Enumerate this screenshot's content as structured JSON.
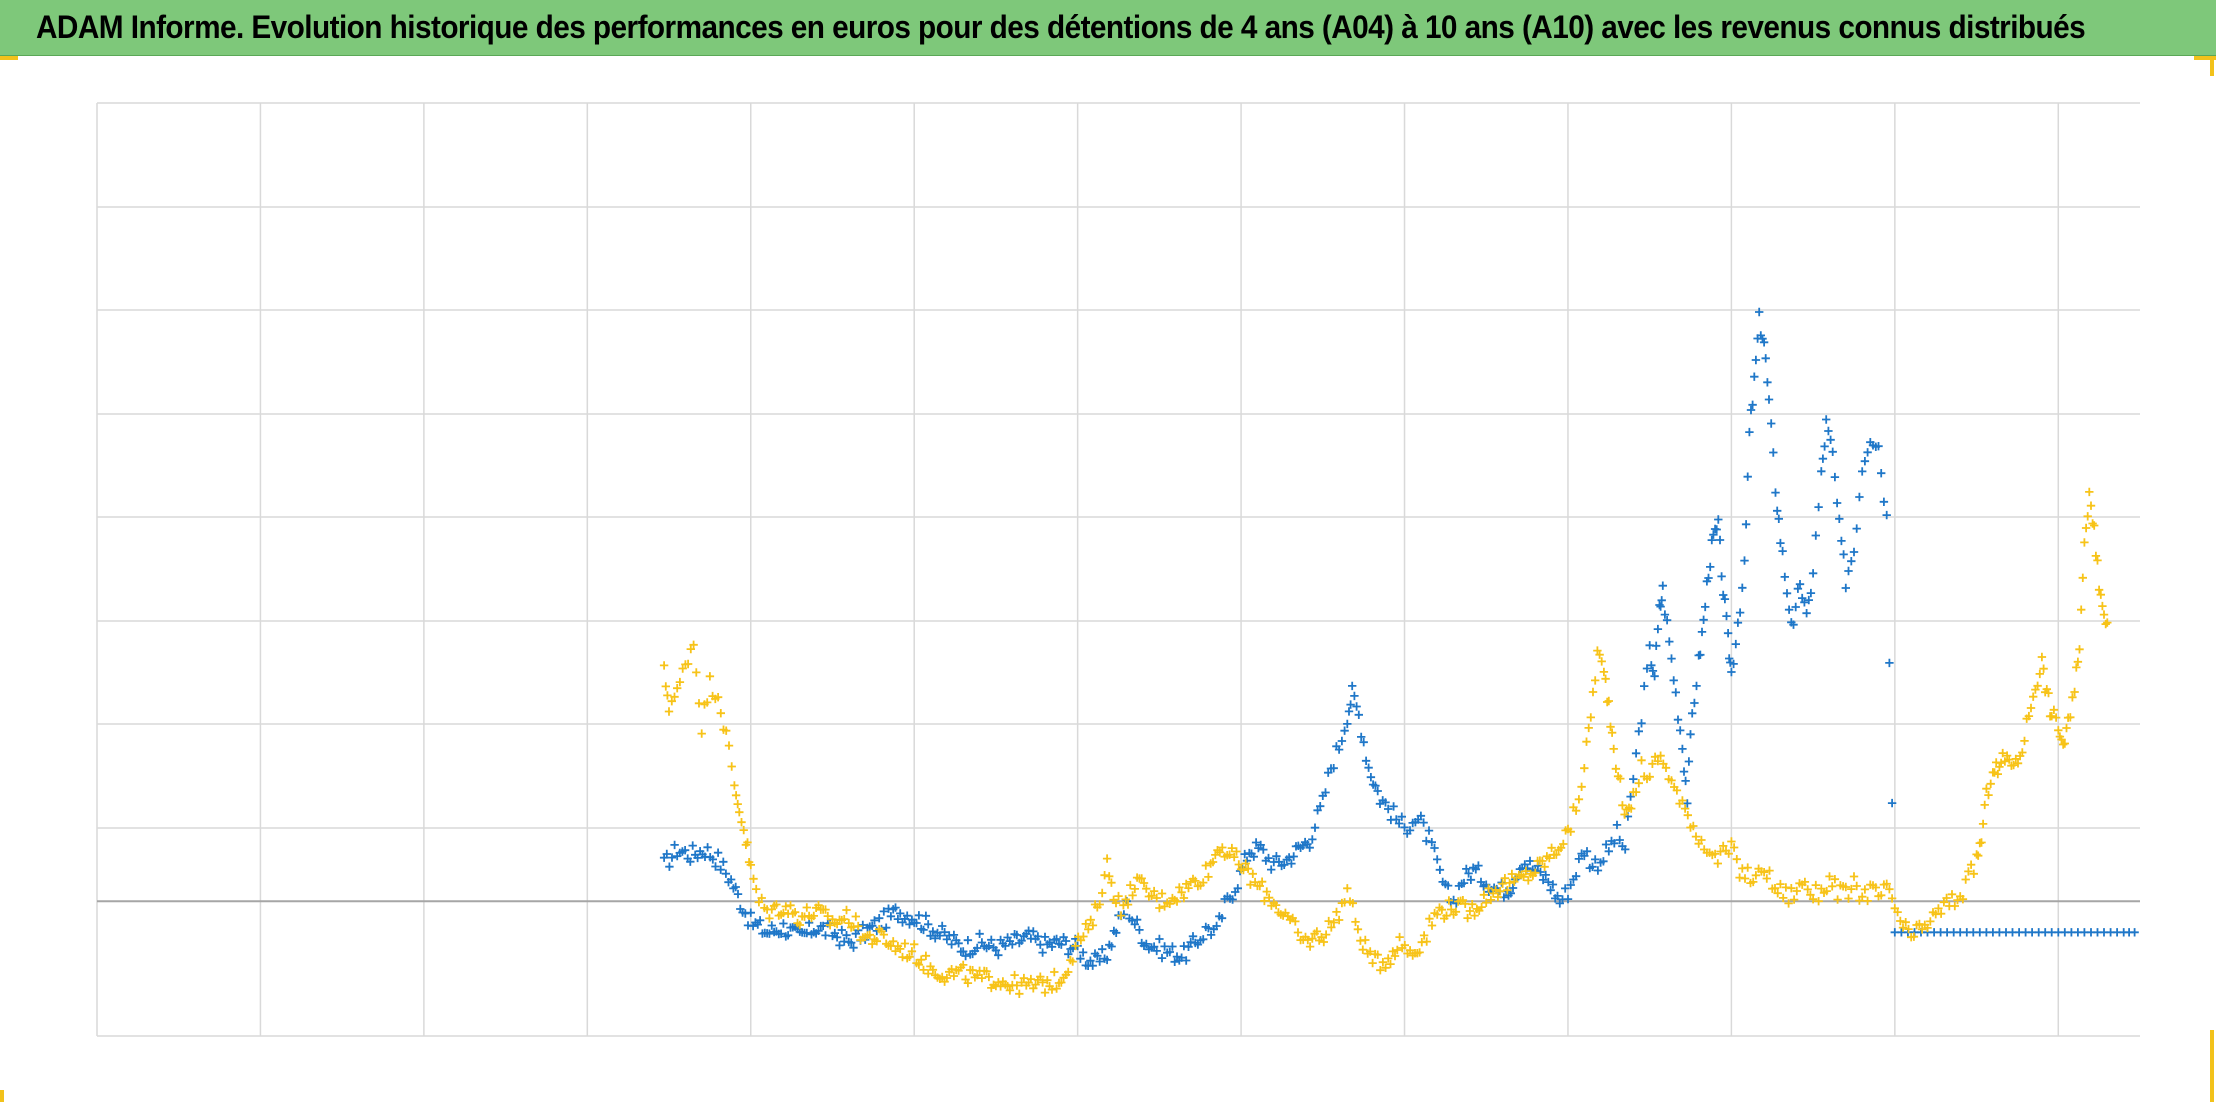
{
  "title": "ADAM Informe. Evolution historique des performances en euros pour des détentions de 4 ans (A04) à 10 ans (A10) avec les revenus connus distribués",
  "colors": {
    "title_background": "#7ec87a",
    "series_a04": "#1f77c8",
    "series_a10": "#f7c318",
    "grid": "#d9d9d9",
    "zero_line": "#a6a6a6",
    "accent_corner": "#f2c21b"
  },
  "chart_data": {
    "type": "scatter",
    "marker": "plus",
    "grid": true,
    "legend": "none",
    "x_axis": {
      "range": [
        0,
        12.5
      ],
      "gridlines": 13,
      "tick_labels": []
    },
    "y_axis": {
      "range": [
        -1.3,
        7.7
      ],
      "gridlines": 10,
      "zero_line": 0,
      "tick_labels": []
    },
    "series": [
      {
        "color": "#1f77c8",
        "points": [
          [
            3.47,
            0.35
          ],
          [
            3.55,
            0.5
          ],
          [
            3.63,
            0.45
          ],
          [
            3.72,
            0.5
          ],
          [
            3.8,
            0.4
          ],
          [
            3.88,
            0.2
          ],
          [
            3.95,
            -0.05
          ],
          [
            4.0,
            -0.2
          ],
          [
            4.1,
            -0.3
          ],
          [
            4.2,
            -0.25
          ],
          [
            4.3,
            -0.35
          ],
          [
            4.4,
            -0.25
          ],
          [
            4.5,
            -0.3
          ],
          [
            4.6,
            -0.4
          ],
          [
            4.7,
            -0.3
          ],
          [
            4.8,
            -0.2
          ],
          [
            4.9,
            -0.1
          ],
          [
            5.0,
            -0.15
          ],
          [
            5.1,
            -0.25
          ],
          [
            5.2,
            -0.35
          ],
          [
            5.3,
            -0.45
          ],
          [
            5.4,
            -0.4
          ],
          [
            5.5,
            -0.45
          ],
          [
            5.6,
            -0.4
          ],
          [
            5.7,
            -0.35
          ],
          [
            5.8,
            -0.42
          ],
          [
            5.9,
            -0.4
          ],
          [
            6.0,
            -0.45
          ],
          [
            6.05,
            -0.55
          ],
          [
            6.12,
            -0.6
          ],
          [
            6.18,
            -0.5
          ],
          [
            6.25,
            -0.2
          ],
          [
            6.3,
            -0.05
          ],
          [
            6.35,
            -0.2
          ],
          [
            6.42,
            -0.4
          ],
          [
            6.5,
            -0.45
          ],
          [
            6.58,
            -0.5
          ],
          [
            6.65,
            -0.52
          ],
          [
            6.72,
            -0.4
          ],
          [
            6.8,
            -0.25
          ],
          [
            6.85,
            -0.3
          ],
          [
            6.9,
            -0.05
          ],
          [
            6.98,
            0.2
          ],
          [
            7.05,
            0.5
          ],
          [
            7.12,
            0.5
          ],
          [
            7.2,
            0.35
          ],
          [
            7.28,
            0.4
          ],
          [
            7.35,
            0.5
          ],
          [
            7.42,
            0.6
          ],
          [
            7.5,
            0.95
          ],
          [
            7.55,
            1.3
          ],
          [
            7.6,
            1.5
          ],
          [
            7.65,
            1.8
          ],
          [
            7.68,
            2.0
          ],
          [
            7.72,
            1.8
          ],
          [
            7.78,
            1.3
          ],
          [
            7.85,
            1.0
          ],
          [
            7.9,
            0.9
          ],
          [
            7.95,
            0.8
          ],
          [
            8.0,
            0.7
          ],
          [
            8.05,
            0.8
          ],
          [
            8.1,
            0.75
          ],
          [
            8.15,
            0.6
          ],
          [
            8.2,
            0.35
          ],
          [
            8.25,
            0.1
          ],
          [
            8.3,
            0.0
          ],
          [
            8.35,
            0.2
          ],
          [
            8.42,
            0.3
          ],
          [
            8.5,
            0.2
          ],
          [
            8.58,
            0.1
          ],
          [
            8.65,
            0.15
          ],
          [
            8.72,
            0.4
          ],
          [
            8.8,
            0.3
          ],
          [
            8.88,
            0.2
          ],
          [
            8.95,
            0.0
          ],
          [
            9.0,
            0.1
          ],
          [
            9.05,
            0.3
          ],
          [
            9.1,
            0.5
          ],
          [
            9.15,
            0.35
          ],
          [
            9.2,
            0.4
          ],
          [
            9.25,
            0.5
          ],
          [
            9.3,
            0.65
          ],
          [
            9.35,
            0.5
          ],
          [
            9.4,
            1.2
          ],
          [
            9.45,
            1.8
          ],
          [
            9.5,
            2.4
          ],
          [
            9.53,
            2.2
          ],
          [
            9.56,
            2.8
          ],
          [
            9.58,
            3.0
          ],
          [
            9.62,
            2.5
          ],
          [
            9.66,
            2.0
          ],
          [
            9.7,
            1.5
          ],
          [
            9.73,
            1.0
          ],
          [
            9.76,
            1.8
          ],
          [
            9.8,
            2.3
          ],
          [
            9.83,
            2.7
          ],
          [
            9.86,
            3.2
          ],
          [
            9.89,
            3.5
          ],
          [
            9.92,
            3.6
          ],
          [
            9.95,
            3.0
          ],
          [
            9.98,
            2.5
          ],
          [
            10.0,
            2.2
          ],
          [
            10.04,
            2.7
          ],
          [
            10.08,
            3.2
          ],
          [
            10.11,
            4.5
          ],
          [
            10.14,
            5.0
          ],
          [
            10.17,
            5.6
          ],
          [
            10.2,
            5.4
          ],
          [
            10.23,
            4.8
          ],
          [
            10.27,
            4.0
          ],
          [
            10.3,
            3.5
          ],
          [
            10.34,
            3.0
          ],
          [
            10.38,
            2.6
          ],
          [
            10.42,
            3.1
          ],
          [
            10.46,
            2.7
          ],
          [
            10.5,
            3.2
          ],
          [
            10.55,
            4.1
          ],
          [
            10.58,
            4.6
          ],
          [
            10.62,
            4.3
          ],
          [
            10.66,
            3.6
          ],
          [
            10.7,
            3.1
          ],
          [
            10.75,
            3.4
          ],
          [
            10.8,
            4.2
          ],
          [
            10.85,
            4.5
          ],
          [
            10.9,
            4.4
          ],
          [
            10.95,
            3.7
          ],
          [
            11.0,
            -0.3
          ],
          [
            11.2,
            -0.3
          ],
          [
            11.4,
            -0.3
          ],
          [
            11.6,
            -0.3
          ],
          [
            11.8,
            -0.3
          ],
          [
            12.0,
            -0.3
          ],
          [
            12.2,
            -0.3
          ],
          [
            12.4,
            -0.3
          ],
          [
            12.5,
            -0.3
          ]
        ]
      },
      {
        "color": "#f7c318",
        "points": [
          [
            3.47,
            2.2
          ],
          [
            3.5,
            1.9
          ],
          [
            3.55,
            2.0
          ],
          [
            3.6,
            2.3
          ],
          [
            3.65,
            2.5
          ],
          [
            3.7,
            1.7
          ],
          [
            3.75,
            2.1
          ],
          [
            3.8,
            2.0
          ],
          [
            3.85,
            1.6
          ],
          [
            3.9,
            1.1
          ],
          [
            3.93,
            0.9
          ],
          [
            3.97,
            0.6
          ],
          [
            4.0,
            0.3
          ],
          [
            4.05,
            0.0
          ],
          [
            4.1,
            -0.1
          ],
          [
            4.2,
            -0.05
          ],
          [
            4.3,
            -0.15
          ],
          [
            4.4,
            -0.1
          ],
          [
            4.5,
            -0.2
          ],
          [
            4.6,
            -0.15
          ],
          [
            4.7,
            -0.35
          ],
          [
            4.8,
            -0.35
          ],
          [
            4.9,
            -0.45
          ],
          [
            5.0,
            -0.5
          ],
          [
            5.1,
            -0.65
          ],
          [
            5.2,
            -0.7
          ],
          [
            5.3,
            -0.7
          ],
          [
            5.4,
            -0.75
          ],
          [
            5.5,
            -0.75
          ],
          [
            5.6,
            -0.8
          ],
          [
            5.7,
            -0.82
          ],
          [
            5.8,
            -0.8
          ],
          [
            5.9,
            -0.75
          ],
          [
            5.97,
            -0.5
          ],
          [
            6.02,
            -0.35
          ],
          [
            6.08,
            -0.25
          ],
          [
            6.12,
            -0.05
          ],
          [
            6.18,
            0.35
          ],
          [
            6.22,
            0.1
          ],
          [
            6.28,
            -0.1
          ],
          [
            6.35,
            0.2
          ],
          [
            6.42,
            0.1
          ],
          [
            6.5,
            0.0
          ],
          [
            6.58,
            0.05
          ],
          [
            6.65,
            0.1
          ],
          [
            6.72,
            0.2
          ],
          [
            6.8,
            0.3
          ],
          [
            6.87,
            0.55
          ],
          [
            6.93,
            0.45
          ],
          [
            7.0,
            0.35
          ],
          [
            7.1,
            0.15
          ],
          [
            7.2,
            0.0
          ],
          [
            7.3,
            -0.2
          ],
          [
            7.38,
            -0.4
          ],
          [
            7.45,
            -0.35
          ],
          [
            7.52,
            -0.3
          ],
          [
            7.6,
            -0.1
          ],
          [
            7.65,
            0.1
          ],
          [
            7.7,
            -0.2
          ],
          [
            7.76,
            -0.45
          ],
          [
            7.82,
            -0.6
          ],
          [
            7.9,
            -0.55
          ],
          [
            7.97,
            -0.4
          ],
          [
            8.05,
            -0.5
          ],
          [
            8.12,
            -0.35
          ],
          [
            8.2,
            -0.1
          ],
          [
            8.3,
            -0.05
          ],
          [
            8.4,
            -0.1
          ],
          [
            8.5,
            0.05
          ],
          [
            8.6,
            0.15
          ],
          [
            8.7,
            0.2
          ],
          [
            8.8,
            0.3
          ],
          [
            8.9,
            0.45
          ],
          [
            9.0,
            0.65
          ],
          [
            9.05,
            0.9
          ],
          [
            9.1,
            1.3
          ],
          [
            9.14,
            1.8
          ],
          [
            9.18,
            2.4
          ],
          [
            9.22,
            2.2
          ],
          [
            9.25,
            1.9
          ],
          [
            9.28,
            1.5
          ],
          [
            9.32,
            1.1
          ],
          [
            9.36,
            0.8
          ],
          [
            9.4,
            1.0
          ],
          [
            9.45,
            1.3
          ],
          [
            9.5,
            1.2
          ],
          [
            9.55,
            1.4
          ],
          [
            9.6,
            1.3
          ],
          [
            9.65,
            1.1
          ],
          [
            9.7,
            0.9
          ],
          [
            9.75,
            0.8
          ],
          [
            9.8,
            0.6
          ],
          [
            9.85,
            0.55
          ],
          [
            9.9,
            0.4
          ],
          [
            9.95,
            0.45
          ],
          [
            10.0,
            0.5
          ],
          [
            10.05,
            0.3
          ],
          [
            10.1,
            0.25
          ],
          [
            10.15,
            0.2
          ],
          [
            10.2,
            0.35
          ],
          [
            10.25,
            0.15
          ],
          [
            10.3,
            0.1
          ],
          [
            10.35,
            0.05
          ],
          [
            10.4,
            0.1
          ],
          [
            10.45,
            0.2
          ],
          [
            10.5,
            0.05
          ],
          [
            10.55,
            0.1
          ],
          [
            10.6,
            0.2
          ],
          [
            10.65,
            0.1
          ],
          [
            10.7,
            0.05
          ],
          [
            10.75,
            0.15
          ],
          [
            10.8,
            0.05
          ],
          [
            10.85,
            0.1
          ],
          [
            10.9,
            0.05
          ],
          [
            10.95,
            0.1
          ],
          [
            11.0,
            -0.05
          ],
          [
            11.05,
            -0.25
          ],
          [
            11.1,
            -0.35
          ],
          [
            11.15,
            -0.3
          ],
          [
            11.2,
            -0.2
          ],
          [
            11.25,
            -0.15
          ],
          [
            11.3,
            -0.05
          ],
          [
            11.35,
            0.0
          ],
          [
            11.4,
            0.05
          ],
          [
            11.45,
            0.2
          ],
          [
            11.5,
            0.4
          ],
          [
            11.53,
            0.6
          ],
          [
            11.56,
            1.0
          ],
          [
            11.6,
            1.3
          ],
          [
            11.63,
            1.25
          ],
          [
            11.66,
            1.35
          ],
          [
            11.7,
            1.4
          ],
          [
            11.74,
            1.3
          ],
          [
            11.78,
            1.5
          ],
          [
            11.82,
            1.8
          ],
          [
            11.86,
            2.1
          ],
          [
            11.9,
            2.3
          ],
          [
            11.93,
            2.0
          ],
          [
            11.96,
            1.8
          ],
          [
            12.0,
            1.7
          ],
          [
            12.03,
            1.5
          ],
          [
            12.06,
            1.7
          ],
          [
            12.1,
            2.0
          ],
          [
            12.13,
            2.5
          ],
          [
            12.16,
            3.4
          ],
          [
            12.19,
            4.0
          ],
          [
            12.22,
            3.6
          ],
          [
            12.25,
            3.0
          ],
          [
            12.28,
            2.8
          ],
          [
            12.31,
            2.6
          ]
        ]
      }
    ]
  }
}
